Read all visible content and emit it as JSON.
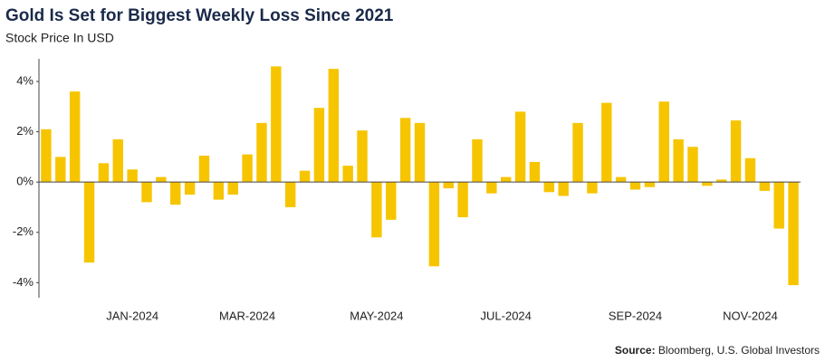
{
  "chart_data": {
    "type": "bar",
    "title": "Gold Is Set for Biggest Weekly Loss Since 2021",
    "subtitle": "Stock Price In USD",
    "source_label": "Source:",
    "source": "Bloomberg, U.S. Global Investors",
    "color": "#f6c500",
    "categories": [
      null,
      null,
      null,
      null,
      null,
      null,
      "JAN-2024",
      null,
      null,
      null,
      null,
      null,
      null,
      null,
      "MAR-2024",
      null,
      null,
      null,
      null,
      null,
      null,
      null,
      null,
      "MAY-2024",
      null,
      null,
      null,
      null,
      null,
      null,
      null,
      null,
      "JUL-2024",
      null,
      null,
      null,
      null,
      null,
      null,
      null,
      null,
      "SEP-2024",
      null,
      null,
      null,
      null,
      null,
      null,
      null,
      "NOV-2024",
      null,
      null,
      null
    ],
    "values": [
      2.1,
      1.0,
      3.6,
      -3.2,
      0.75,
      1.7,
      0.5,
      -0.8,
      0.2,
      -0.9,
      -0.5,
      1.05,
      -0.7,
      -0.5,
      1.1,
      2.35,
      4.6,
      -1.0,
      0.45,
      2.95,
      4.5,
      0.65,
      2.05,
      -2.2,
      -1.5,
      2.55,
      2.35,
      -3.35,
      -0.25,
      -1.4,
      1.7,
      -0.45,
      0.2,
      2.8,
      0.8,
      -0.4,
      -0.55,
      2.35,
      -0.45,
      3.15,
      0.2,
      -0.3,
      -0.2,
      3.2,
      1.7,
      1.4,
      -0.15,
      0.1,
      2.45,
      0.95,
      -0.35,
      -1.85,
      -4.1
    ],
    "ylim": [
      -4.6,
      4.9
    ],
    "yticks": [
      {
        "value": -4,
        "label": "-4%"
      },
      {
        "value": -2,
        "label": "-2%"
      },
      {
        "value": 0,
        "label": "0%"
      },
      {
        "value": 2,
        "label": "2%"
      },
      {
        "value": 4,
        "label": "4%"
      }
    ]
  }
}
